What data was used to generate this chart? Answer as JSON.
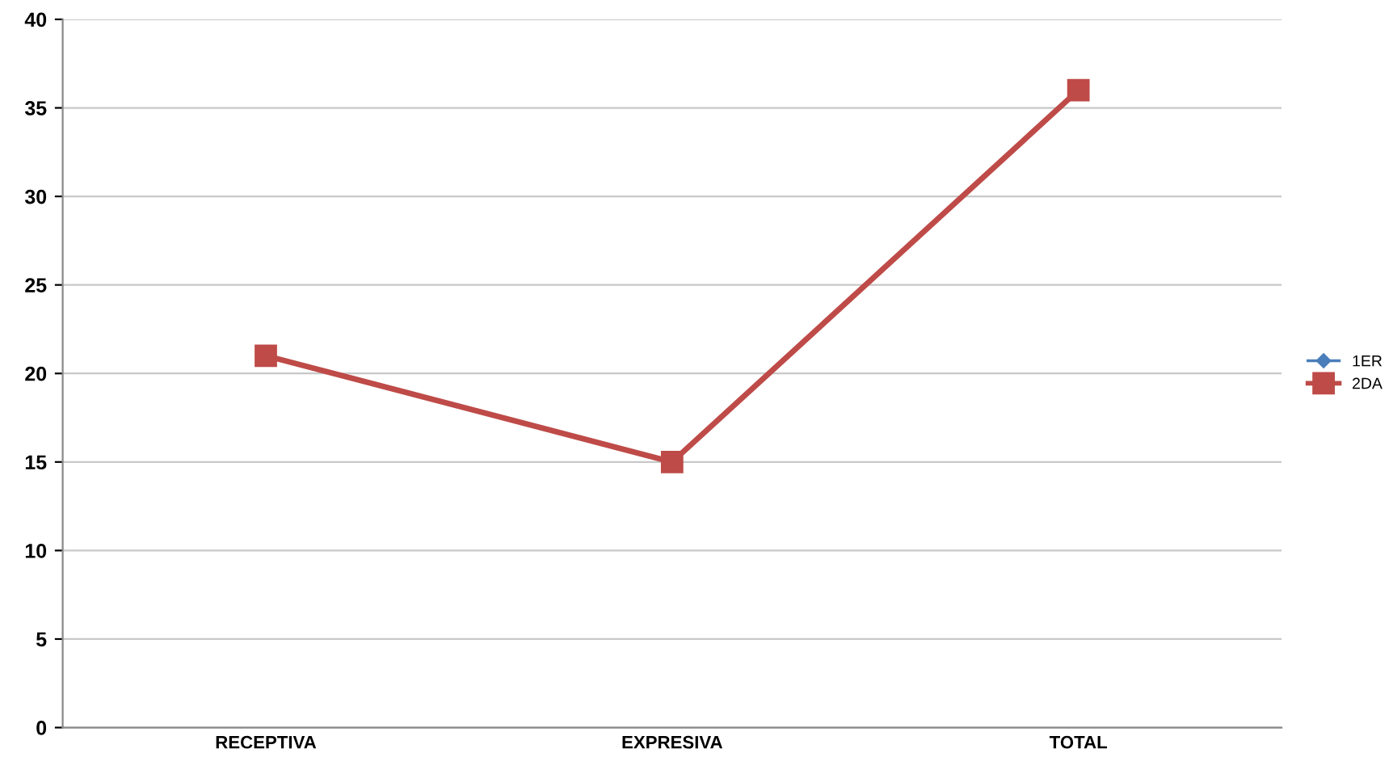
{
  "chart_data": {
    "type": "line",
    "categories": [
      "RECEPTIVA",
      "EXPRESIVA",
      "TOTAL"
    ],
    "series": [
      {
        "name": "1ER",
        "color": "#4a7ebb",
        "marker": "diamond",
        "values": [
          null,
          null,
          null
        ]
      },
      {
        "name": "2DA",
        "color": "#be4b48",
        "marker": "square",
        "values": [
          21,
          15,
          36
        ]
      }
    ],
    "ylim": [
      0,
      40
    ],
    "yticks": [
      0,
      5,
      10,
      15,
      20,
      25,
      30,
      35,
      40
    ],
    "grid": "y",
    "legend": "right"
  }
}
